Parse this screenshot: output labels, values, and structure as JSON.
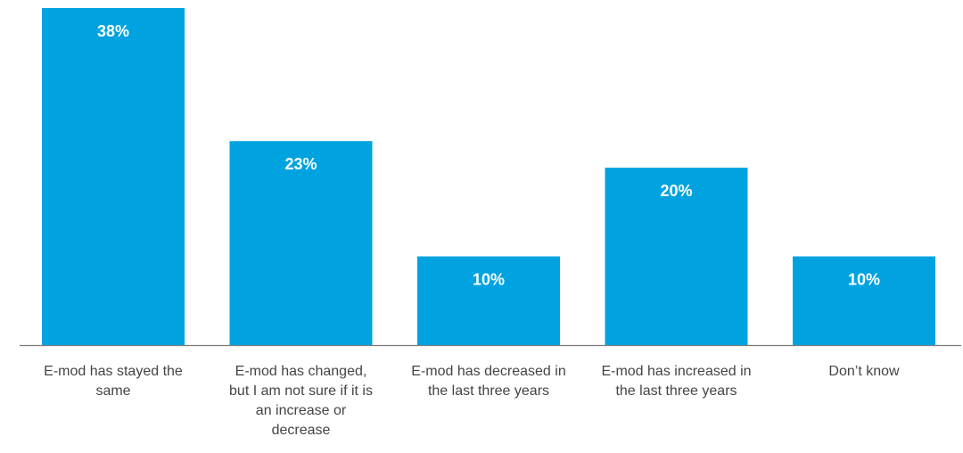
{
  "chart_data": {
    "type": "bar",
    "categories": [
      "E-mod has stayed the same",
      "E-mod has changed, but I am not sure if it is an increase or decrease",
      "E-mod has decreased in the last three years",
      "E-mod has increased in the last three years",
      "Don’t know"
    ],
    "values": [
      38,
      23,
      10,
      20,
      10
    ],
    "value_labels": [
      "38%",
      "23%",
      "10%",
      "20%",
      "10%"
    ],
    "unit": "%",
    "ylim": [
      0,
      38
    ],
    "grid": false,
    "legend": "none",
    "title": "",
    "xlabel": "",
    "ylabel": ""
  },
  "colors": {
    "bar": "#00a3e0",
    "axis": "#7a7a7a",
    "value_text": "#ffffff",
    "label_text": "#444444"
  }
}
